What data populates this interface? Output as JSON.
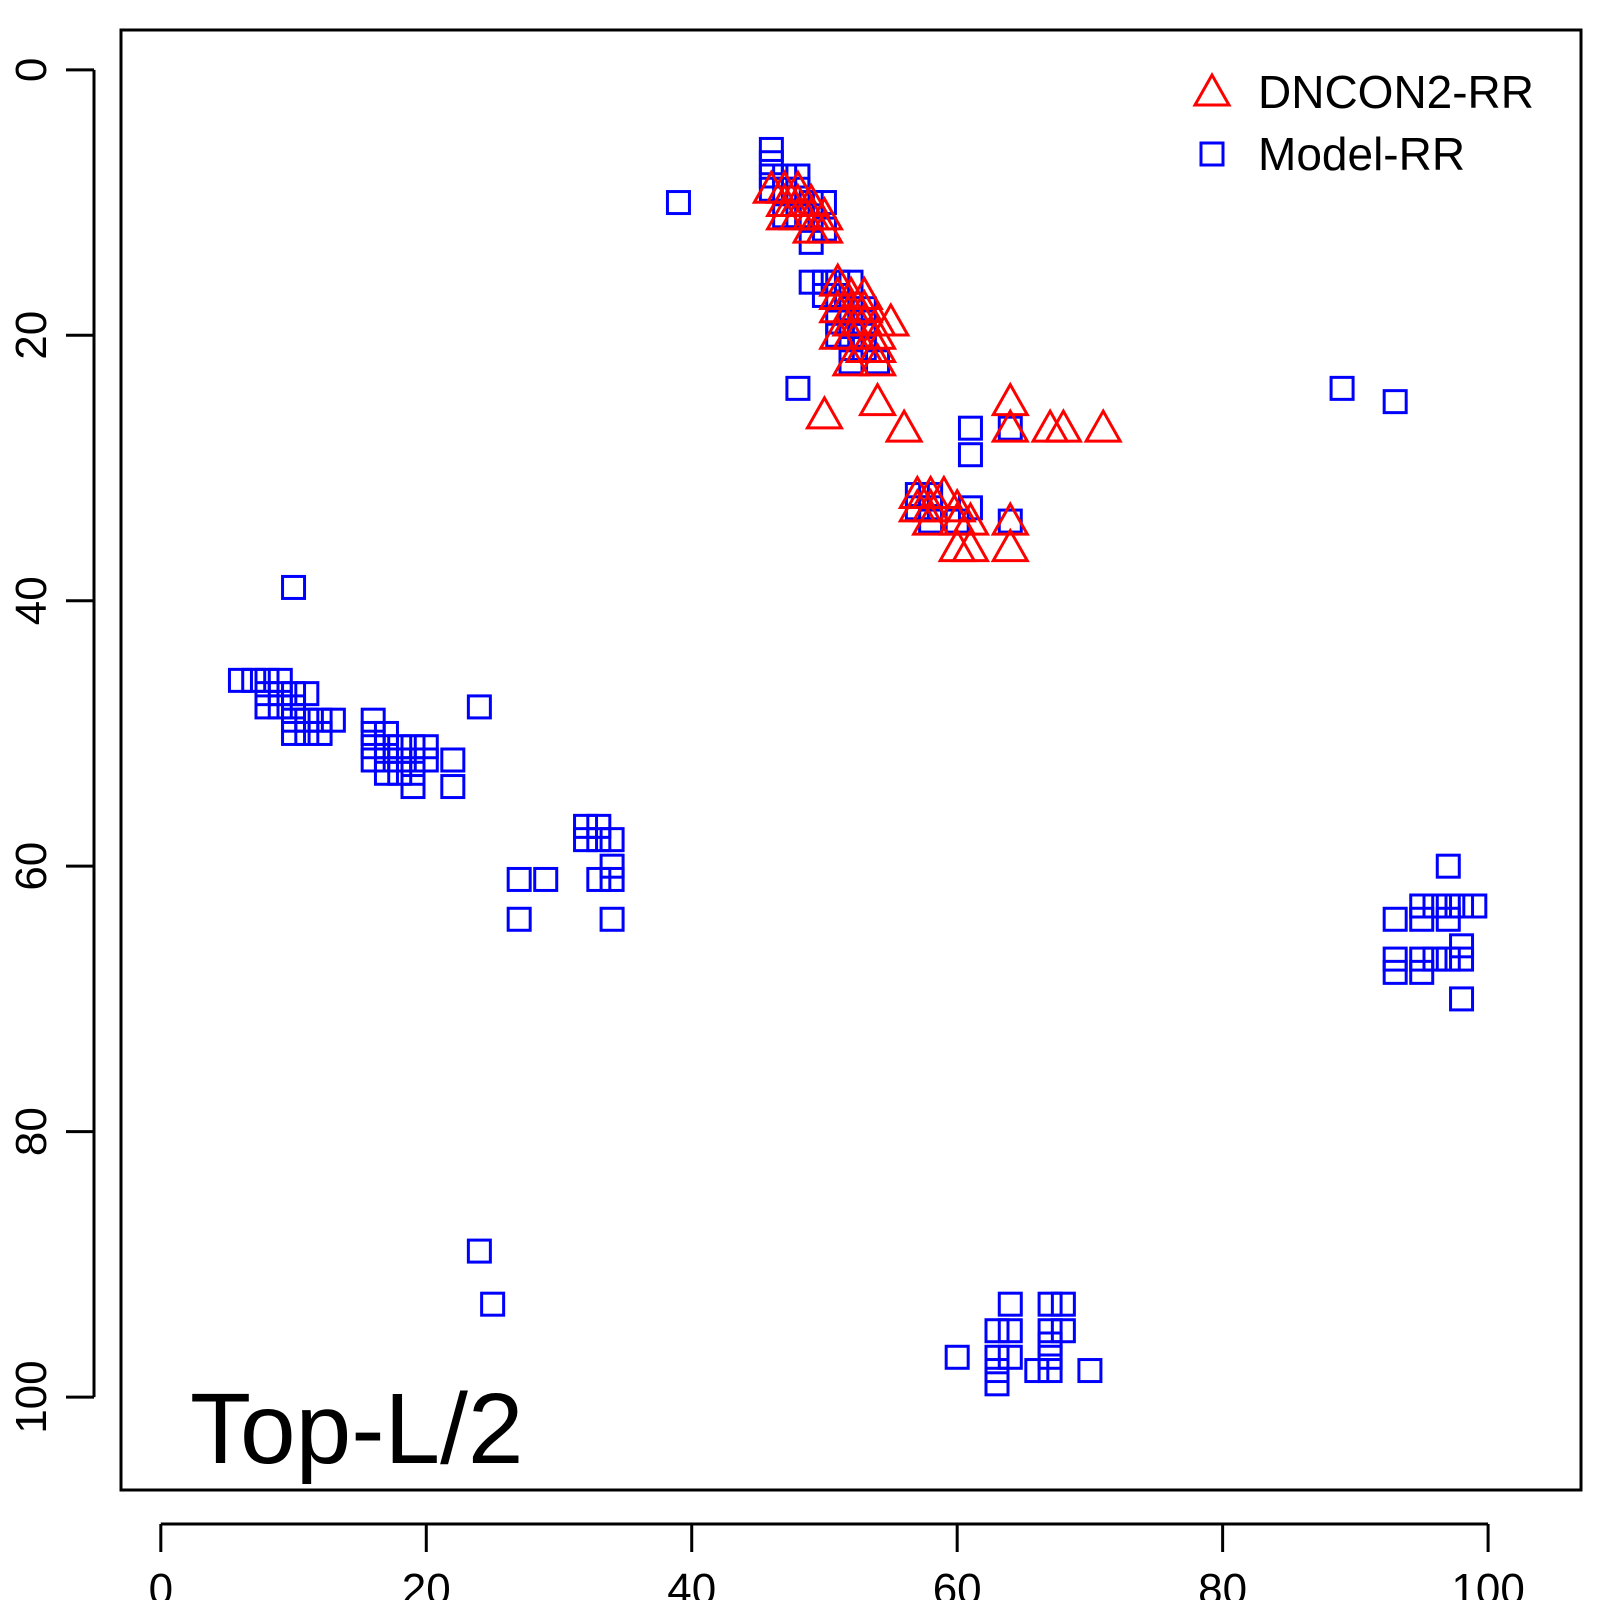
{
  "chart_data": {
    "type": "scatter",
    "title": "",
    "xlabel": "",
    "ylabel": "",
    "xlim": [
      -3,
      107
    ],
    "ylim": [
      -3,
      107
    ],
    "y_reversed": true,
    "grid": false,
    "legend_position": "top-right",
    "annotation": "Top-L/2",
    "x_ticks": [
      "0",
      "20",
      "40",
      "60",
      "80",
      "100"
    ],
    "y_ticks": [
      "0",
      "20",
      "40",
      "60",
      "80",
      "100"
    ],
    "series": [
      {
        "name": "DNCON2-RR",
        "marker": "triangle",
        "color": "#ff0000",
        "points": [
          [
            46,
            9
          ],
          [
            47,
            9
          ],
          [
            47,
            10
          ],
          [
            48,
            9
          ],
          [
            48,
            10
          ],
          [
            49,
            10
          ],
          [
            49,
            11
          ],
          [
            50,
            11
          ],
          [
            47,
            11
          ],
          [
            48,
            11
          ],
          [
            49,
            12
          ],
          [
            50,
            12
          ],
          [
            51,
            16
          ],
          [
            51,
            17
          ],
          [
            52,
            17
          ],
          [
            52,
            18
          ],
          [
            53,
            17
          ],
          [
            53,
            18
          ],
          [
            54,
            19
          ],
          [
            55,
            19
          ],
          [
            51,
            18
          ],
          [
            52,
            19
          ],
          [
            53,
            19
          ],
          [
            54,
            20
          ],
          [
            51,
            20
          ],
          [
            52,
            20
          ],
          [
            53,
            21
          ],
          [
            54,
            21
          ],
          [
            52,
            22
          ],
          [
            54,
            22
          ],
          [
            50,
            26
          ],
          [
            54,
            25
          ],
          [
            56,
            27
          ],
          [
            64,
            25
          ],
          [
            64,
            27
          ],
          [
            67,
            27
          ],
          [
            68,
            27
          ],
          [
            71,
            27
          ],
          [
            57,
            32
          ],
          [
            58,
            32
          ],
          [
            59,
            32
          ],
          [
            57,
            33
          ],
          [
            58,
            33
          ],
          [
            60,
            33
          ],
          [
            58,
            34
          ],
          [
            60,
            34
          ],
          [
            61,
            34
          ],
          [
            64,
            34
          ],
          [
            60,
            36
          ],
          [
            61,
            36
          ],
          [
            64,
            36
          ]
        ]
      },
      {
        "name": "Model-RR",
        "marker": "square",
        "color": "#0000ff",
        "points": [
          [
            46,
            6
          ],
          [
            46,
            7
          ],
          [
            46,
            8
          ],
          [
            47,
            8
          ],
          [
            48,
            8
          ],
          [
            46,
            9
          ],
          [
            47,
            9
          ],
          [
            48,
            9
          ],
          [
            49,
            10
          ],
          [
            50,
            10
          ],
          [
            47,
            11
          ],
          [
            48,
            11
          ],
          [
            49,
            11
          ],
          [
            50,
            12
          ],
          [
            49,
            13
          ],
          [
            39,
            10
          ],
          [
            49,
            16
          ],
          [
            50,
            16
          ],
          [
            51,
            16
          ],
          [
            52,
            16
          ],
          [
            50,
            17
          ],
          [
            51,
            17
          ],
          [
            52,
            18
          ],
          [
            53,
            18
          ],
          [
            51,
            19
          ],
          [
            52,
            19
          ],
          [
            53,
            19
          ],
          [
            51,
            20
          ],
          [
            52,
            20
          ],
          [
            53,
            20
          ],
          [
            52,
            21
          ],
          [
            53,
            21
          ],
          [
            52,
            22
          ],
          [
            54,
            22
          ],
          [
            48,
            24
          ],
          [
            61,
            27
          ],
          [
            64,
            27
          ],
          [
            61,
            29
          ],
          [
            89,
            24
          ],
          [
            93,
            25
          ],
          [
            57,
            32
          ],
          [
            58,
            32
          ],
          [
            57,
            33
          ],
          [
            58,
            33
          ],
          [
            61,
            33
          ],
          [
            58,
            34
          ],
          [
            64,
            34
          ],
          [
            60,
            34
          ],
          [
            10,
            39
          ],
          [
            6,
            46
          ],
          [
            7,
            46
          ],
          [
            8,
            46
          ],
          [
            9,
            46
          ],
          [
            8,
            47
          ],
          [
            9,
            47
          ],
          [
            10,
            47
          ],
          [
            11,
            47
          ],
          [
            8,
            48
          ],
          [
            9,
            48
          ],
          [
            10,
            48
          ],
          [
            10,
            49
          ],
          [
            11,
            49
          ],
          [
            12,
            49
          ],
          [
            13,
            49
          ],
          [
            10,
            50
          ],
          [
            11,
            50
          ],
          [
            12,
            50
          ],
          [
            24,
            48
          ],
          [
            16,
            49
          ],
          [
            16,
            50
          ],
          [
            17,
            50
          ],
          [
            16,
            51
          ],
          [
            17,
            51
          ],
          [
            18,
            51
          ],
          [
            19,
            51
          ],
          [
            20,
            51
          ],
          [
            16,
            52
          ],
          [
            17,
            52
          ],
          [
            18,
            52
          ],
          [
            19,
            52
          ],
          [
            20,
            52
          ],
          [
            22,
            52
          ],
          [
            17,
            53
          ],
          [
            18,
            53
          ],
          [
            19,
            53
          ],
          [
            19,
            54
          ],
          [
            22,
            54
          ],
          [
            32,
            57
          ],
          [
            33,
            57
          ],
          [
            32,
            58
          ],
          [
            33,
            58
          ],
          [
            34,
            58
          ],
          [
            34,
            60
          ],
          [
            27,
            61
          ],
          [
            29,
            61
          ],
          [
            33,
            61
          ],
          [
            34,
            61
          ],
          [
            27,
            64
          ],
          [
            34,
            64
          ],
          [
            97,
            60
          ],
          [
            95,
            63
          ],
          [
            96,
            63
          ],
          [
            97,
            63
          ],
          [
            98,
            63
          ],
          [
            99,
            63
          ],
          [
            93,
            64
          ],
          [
            95,
            64
          ],
          [
            97,
            64
          ],
          [
            98,
            66
          ],
          [
            93,
            67
          ],
          [
            95,
            67
          ],
          [
            96,
            67
          ],
          [
            97,
            67
          ],
          [
            98,
            67
          ],
          [
            93,
            68
          ],
          [
            95,
            68
          ],
          [
            98,
            70
          ],
          [
            24,
            89
          ],
          [
            25,
            93
          ],
          [
            64,
            93
          ],
          [
            67,
            93
          ],
          [
            68,
            93
          ],
          [
            63,
            95
          ],
          [
            64,
            95
          ],
          [
            67,
            95
          ],
          [
            68,
            95
          ],
          [
            67,
            96
          ],
          [
            60,
            97
          ],
          [
            63,
            97
          ],
          [
            64,
            97
          ],
          [
            67,
            97
          ],
          [
            63,
            98
          ],
          [
            66,
            98
          ],
          [
            67,
            98
          ],
          [
            70,
            98
          ],
          [
            63,
            99
          ]
        ]
      }
    ]
  }
}
